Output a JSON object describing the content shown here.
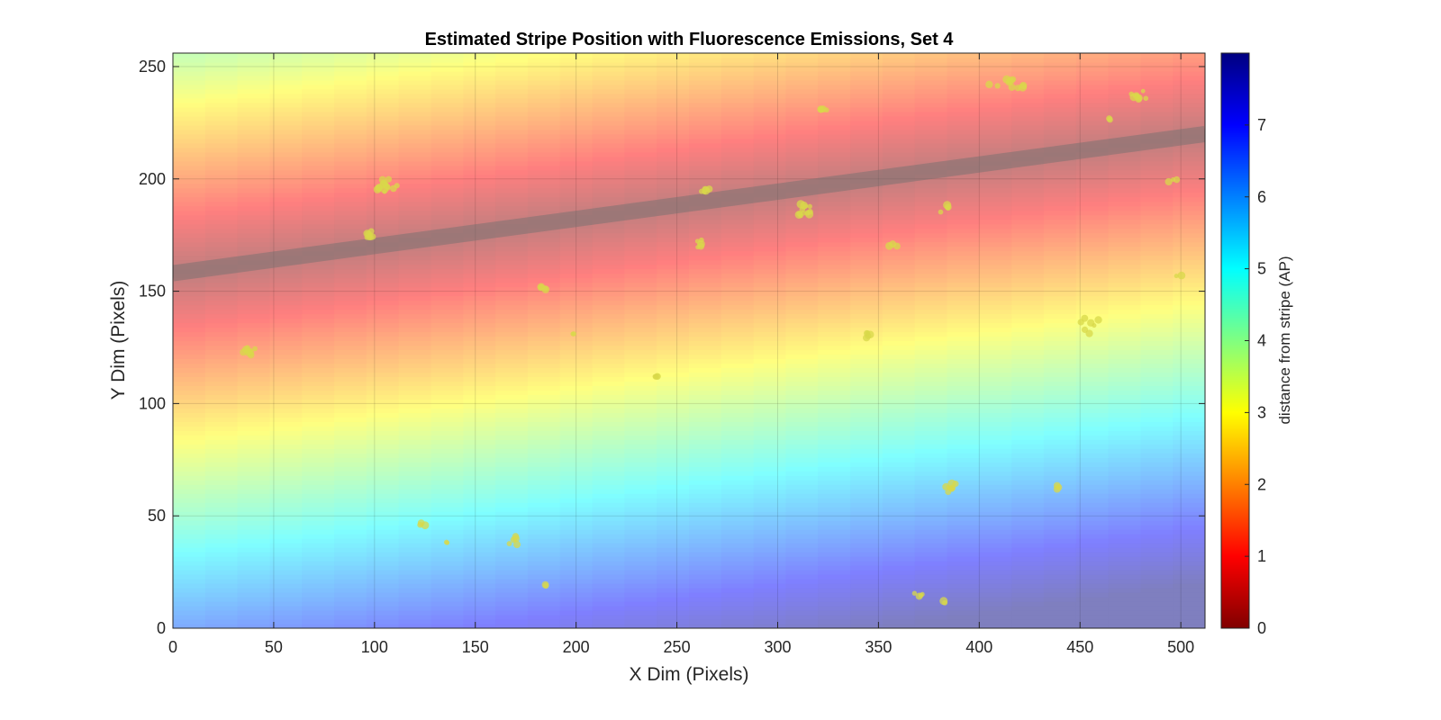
{
  "chart_data": {
    "type": "heatmap",
    "title": "Estimated Stripe Position with Fluorescence Emissions, Set 4",
    "xlabel": "X Dim (Pixels)",
    "ylabel": "Y Dim (Pixels)",
    "xlim": [
      0,
      512
    ],
    "ylim": [
      0,
      256
    ],
    "x_ticks": [
      0,
      50,
      100,
      150,
      200,
      250,
      300,
      350,
      400,
      450,
      500
    ],
    "y_ticks": [
      0,
      50,
      100,
      150,
      200,
      250
    ],
    "grid": true,
    "colormap": "jet-reversed",
    "stripe_line": {
      "x": [
        0,
        512
      ],
      "y": [
        158,
        220
      ]
    },
    "colorbar": {
      "label": "distance from stripe (AP)",
      "range": [
        0,
        8
      ],
      "ticks": [
        0,
        1,
        2,
        3,
        4,
        5,
        6,
        7
      ],
      "position": "right"
    },
    "emission_color": "#d8d84a",
    "emission_clusters": [
      {
        "x": 106,
        "y": 197,
        "n": 14,
        "spread": 4
      },
      {
        "x": 98,
        "y": 174,
        "n": 8,
        "spread": 3
      },
      {
        "x": 37,
        "y": 123,
        "n": 8,
        "spread": 3
      },
      {
        "x": 183,
        "y": 152,
        "n": 4,
        "spread": 2
      },
      {
        "x": 198,
        "y": 131,
        "n": 2,
        "spread": 1
      },
      {
        "x": 262,
        "y": 171,
        "n": 5,
        "spread": 2
      },
      {
        "x": 264,
        "y": 195,
        "n": 5,
        "spread": 2
      },
      {
        "x": 313,
        "y": 186,
        "n": 12,
        "spread": 3
      },
      {
        "x": 323,
        "y": 231,
        "n": 4,
        "spread": 2
      },
      {
        "x": 344,
        "y": 130,
        "n": 5,
        "spread": 2
      },
      {
        "x": 357,
        "y": 171,
        "n": 3,
        "spread": 2
      },
      {
        "x": 384,
        "y": 187,
        "n": 5,
        "spread": 3
      },
      {
        "x": 386,
        "y": 62,
        "n": 10,
        "spread": 3
      },
      {
        "x": 418,
        "y": 243,
        "n": 8,
        "spread": 4
      },
      {
        "x": 455,
        "y": 135,
        "n": 7,
        "spread": 4
      },
      {
        "x": 478,
        "y": 237,
        "n": 10,
        "spread": 5
      },
      {
        "x": 438,
        "y": 63,
        "n": 3,
        "spread": 2
      },
      {
        "x": 170,
        "y": 40,
        "n": 6,
        "spread": 4
      },
      {
        "x": 125,
        "y": 46,
        "n": 3,
        "spread": 2
      },
      {
        "x": 368,
        "y": 16,
        "n": 4,
        "spread": 3
      },
      {
        "x": 382,
        "y": 12,
        "n": 2,
        "spread": 1
      },
      {
        "x": 240,
        "y": 112,
        "n": 4,
        "spread": 3
      },
      {
        "x": 187,
        "y": 19,
        "n": 2,
        "spread": 2
      },
      {
        "x": 496,
        "y": 200,
        "n": 3,
        "spread": 2
      },
      {
        "x": 465,
        "y": 227,
        "n": 2,
        "spread": 1
      },
      {
        "x": 136,
        "y": 38,
        "n": 2,
        "spread": 1
      },
      {
        "x": 498,
        "y": 157,
        "n": 2,
        "spread": 2
      },
      {
        "x": 407,
        "y": 241,
        "n": 2,
        "spread": 2
      }
    ]
  }
}
